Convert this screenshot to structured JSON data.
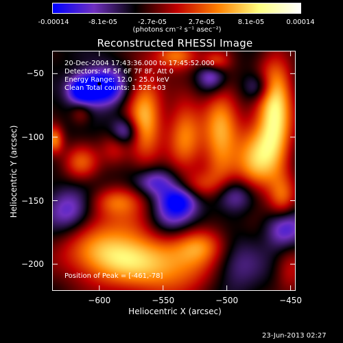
{
  "colorbar": {
    "ticks": [
      "-0.00014",
      "-8.1e-05",
      "-2.7e-05",
      "2.7e-05",
      "8.1e-05",
      "0.00014"
    ],
    "unit_label": "(photons cm⁻² s⁻¹ asec⁻²)",
    "colors": [
      "#0000ff",
      "#7030c0",
      "#000000",
      "#c00000",
      "#ff8000",
      "#ffff80",
      "#ffffff"
    ]
  },
  "chart_data": {
    "type": "heatmap",
    "title": "Reconstructed RHESSI Image",
    "xlabel": "Heliocentric X (arcsec)",
    "ylabel": "Heliocentric Y (arcsec)",
    "xlim": [
      -637,
      -446
    ],
    "ylim": [
      -221,
      -32
    ],
    "xticks": [
      -600,
      -550,
      -500,
      -450
    ],
    "yticks": [
      -50,
      -100,
      -150,
      -200
    ],
    "value_range": [
      -0.00014,
      0.00014
    ],
    "annotations": [
      "20-Dec-2004 17:43:36.000 to 17:45:52.000",
      "Detectors: 4F 5F 6F 7F 8F, Att 0",
      "Energy Range: 12.0 - 25.0 keV",
      "Clean    Total counts: 1.52E+03"
    ],
    "peak_label": "Position of Peak = [-461,-78]",
    "peak": [
      -461,
      -78
    ],
    "marker": [
      -600,
      -58
    ],
    "blobs": [
      {
        "x": -555,
        "y": -200,
        "sx": 38,
        "sy": 18,
        "v": 0.00011
      },
      {
        "x": -600,
        "y": -190,
        "sx": 22,
        "sy": 14,
        "v": 7e-05
      },
      {
        "x": -520,
        "y": -185,
        "sx": 14,
        "sy": 10,
        "v": 6e-05
      },
      {
        "x": -575,
        "y": -165,
        "sx": 20,
        "sy": 12,
        "v": 5e-05
      },
      {
        "x": -462,
        "y": -80,
        "sx": 10,
        "sy": 30,
        "v": 0.00014
      },
      {
        "x": -478,
        "y": -120,
        "sx": 12,
        "sy": 22,
        "v": 0.0001
      },
      {
        "x": -456,
        "y": -150,
        "sx": 8,
        "sy": 14,
        "v": 8e-05
      },
      {
        "x": -565,
        "y": -85,
        "sx": 10,
        "sy": 26,
        "v": 0.00011
      },
      {
        "x": -533,
        "y": -97,
        "sx": 10,
        "sy": 20,
        "v": 9e-05
      },
      {
        "x": -505,
        "y": -100,
        "sx": 10,
        "sy": 32,
        "v": 0.0001
      },
      {
        "x": -615,
        "y": -120,
        "sx": 10,
        "sy": 10,
        "v": 7e-05
      },
      {
        "x": -636,
        "y": -102,
        "sx": 5,
        "sy": 8,
        "v": 9e-05
      },
      {
        "x": -615,
        "y": -80,
        "sx": 6,
        "sy": 7,
        "v": 4e-05
      },
      {
        "x": -588,
        "y": -108,
        "sx": 8,
        "sy": 10,
        "v": 5e-05
      },
      {
        "x": -540,
        "y": -35,
        "sx": 12,
        "sy": 8,
        "v": 9e-05
      },
      {
        "x": -510,
        "y": -40,
        "sx": 8,
        "sy": 6,
        "v": 8e-05
      },
      {
        "x": -588,
        "y": -150,
        "sx": 14,
        "sy": 8,
        "v": 6e-05
      },
      {
        "x": -520,
        "y": -138,
        "sx": 12,
        "sy": 8,
        "v": 5e-05
      },
      {
        "x": -450,
        "y": -205,
        "sx": 8,
        "sy": 16,
        "v": 4e-05
      },
      {
        "x": -598,
        "y": -60,
        "sx": 12,
        "sy": 10,
        "v": -0.00012
      },
      {
        "x": -615,
        "y": -63,
        "sx": 8,
        "sy": 8,
        "v": -0.0001
      },
      {
        "x": -545,
        "y": -165,
        "sx": 14,
        "sy": 12,
        "v": -8e-05
      },
      {
        "x": -558,
        "y": -135,
        "sx": 12,
        "sy": 8,
        "v": -7e-05
      },
      {
        "x": -538,
        "y": -150,
        "sx": 10,
        "sy": 8,
        "v": -8e-05
      },
      {
        "x": -495,
        "y": -145,
        "sx": 14,
        "sy": 10,
        "v": -8e-05
      },
      {
        "x": -455,
        "y": -170,
        "sx": 10,
        "sy": 12,
        "v": -9e-05
      },
      {
        "x": -580,
        "y": -95,
        "sx": 8,
        "sy": 8,
        "v": -8e-05
      },
      {
        "x": -512,
        "y": -50,
        "sx": 8,
        "sy": 10,
        "v": -8e-05
      },
      {
        "x": -625,
        "y": -158,
        "sx": 12,
        "sy": 12,
        "v": -6e-05
      },
      {
        "x": -495,
        "y": -200,
        "sx": 16,
        "sy": 16,
        "v": -6e-05
      },
      {
        "x": -475,
        "y": -60,
        "sx": 8,
        "sy": 8,
        "v": -6e-05
      }
    ]
  },
  "timestamp": "23-Jun-2013 02:27"
}
